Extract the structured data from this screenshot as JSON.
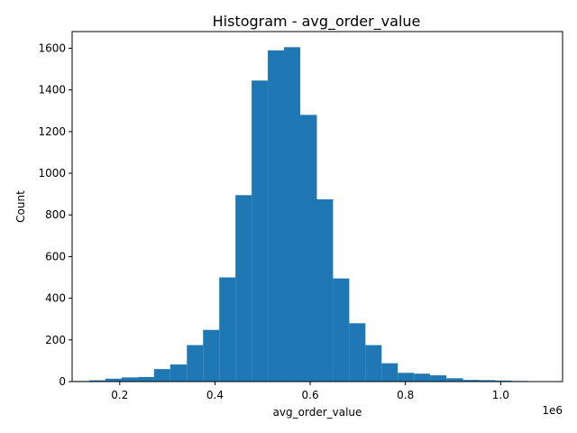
{
  "chart_data": {
    "type": "bar",
    "title": "Histogram - avg_order_value",
    "xlabel": "avg_order_value",
    "ylabel": "Count",
    "x_offset_label": "1e6",
    "xlim": [
      0.1,
      1.13
    ],
    "ylim": [
      0,
      1680
    ],
    "x_ticks": [
      {
        "value": 0.2,
        "label": "0.2"
      },
      {
        "value": 0.4,
        "label": "0.4"
      },
      {
        "value": 0.6,
        "label": "0.6"
      },
      {
        "value": 0.8,
        "label": "0.8"
      },
      {
        "value": 1.0,
        "label": "1.0"
      }
    ],
    "y_ticks": [
      {
        "value": 0,
        "label": "0"
      },
      {
        "value": 200,
        "label": "200"
      },
      {
        "value": 400,
        "label": "400"
      },
      {
        "value": 600,
        "label": "600"
      },
      {
        "value": 800,
        "label": "800"
      },
      {
        "value": 1000,
        "label": "1000"
      },
      {
        "value": 1200,
        "label": "1200"
      },
      {
        "value": 1400,
        "label": "1400"
      },
      {
        "value": 1600,
        "label": "1600"
      }
    ],
    "grid": false,
    "bar_color": "#1f77b4",
    "bins": [
      {
        "x0": 0.102,
        "x1": 0.136,
        "count": 3
      },
      {
        "x0": 0.136,
        "x1": 0.17,
        "count": 6
      },
      {
        "x0": 0.17,
        "x1": 0.204,
        "count": 14
      },
      {
        "x0": 0.204,
        "x1": 0.238,
        "count": 20
      },
      {
        "x0": 0.238,
        "x1": 0.272,
        "count": 22
      },
      {
        "x0": 0.272,
        "x1": 0.306,
        "count": 60
      },
      {
        "x0": 0.306,
        "x1": 0.341,
        "count": 82
      },
      {
        "x0": 0.341,
        "x1": 0.375,
        "count": 175
      },
      {
        "x0": 0.375,
        "x1": 0.409,
        "count": 248
      },
      {
        "x0": 0.409,
        "x1": 0.443,
        "count": 500
      },
      {
        "x0": 0.443,
        "x1": 0.477,
        "count": 895
      },
      {
        "x0": 0.477,
        "x1": 0.511,
        "count": 1445
      },
      {
        "x0": 0.511,
        "x1": 0.545,
        "count": 1590
      },
      {
        "x0": 0.545,
        "x1": 0.579,
        "count": 1605
      },
      {
        "x0": 0.579,
        "x1": 0.614,
        "count": 1280
      },
      {
        "x0": 0.614,
        "x1": 0.648,
        "count": 875
      },
      {
        "x0": 0.648,
        "x1": 0.682,
        "count": 495
      },
      {
        "x0": 0.682,
        "x1": 0.716,
        "count": 280
      },
      {
        "x0": 0.716,
        "x1": 0.75,
        "count": 175
      },
      {
        "x0": 0.75,
        "x1": 0.784,
        "count": 88
      },
      {
        "x0": 0.784,
        "x1": 0.818,
        "count": 42
      },
      {
        "x0": 0.818,
        "x1": 0.852,
        "count": 38
      },
      {
        "x0": 0.852,
        "x1": 0.886,
        "count": 30
      },
      {
        "x0": 0.886,
        "x1": 0.921,
        "count": 16
      },
      {
        "x0": 0.921,
        "x1": 0.955,
        "count": 8
      },
      {
        "x0": 0.955,
        "x1": 0.989,
        "count": 7
      },
      {
        "x0": 0.989,
        "x1": 1.023,
        "count": 5
      },
      {
        "x0": 1.023,
        "x1": 1.057,
        "count": 3
      },
      {
        "x0": 1.057,
        "x1": 1.091,
        "count": 2
      },
      {
        "x0": 1.091,
        "x1": 1.125,
        "count": 1
      }
    ]
  }
}
